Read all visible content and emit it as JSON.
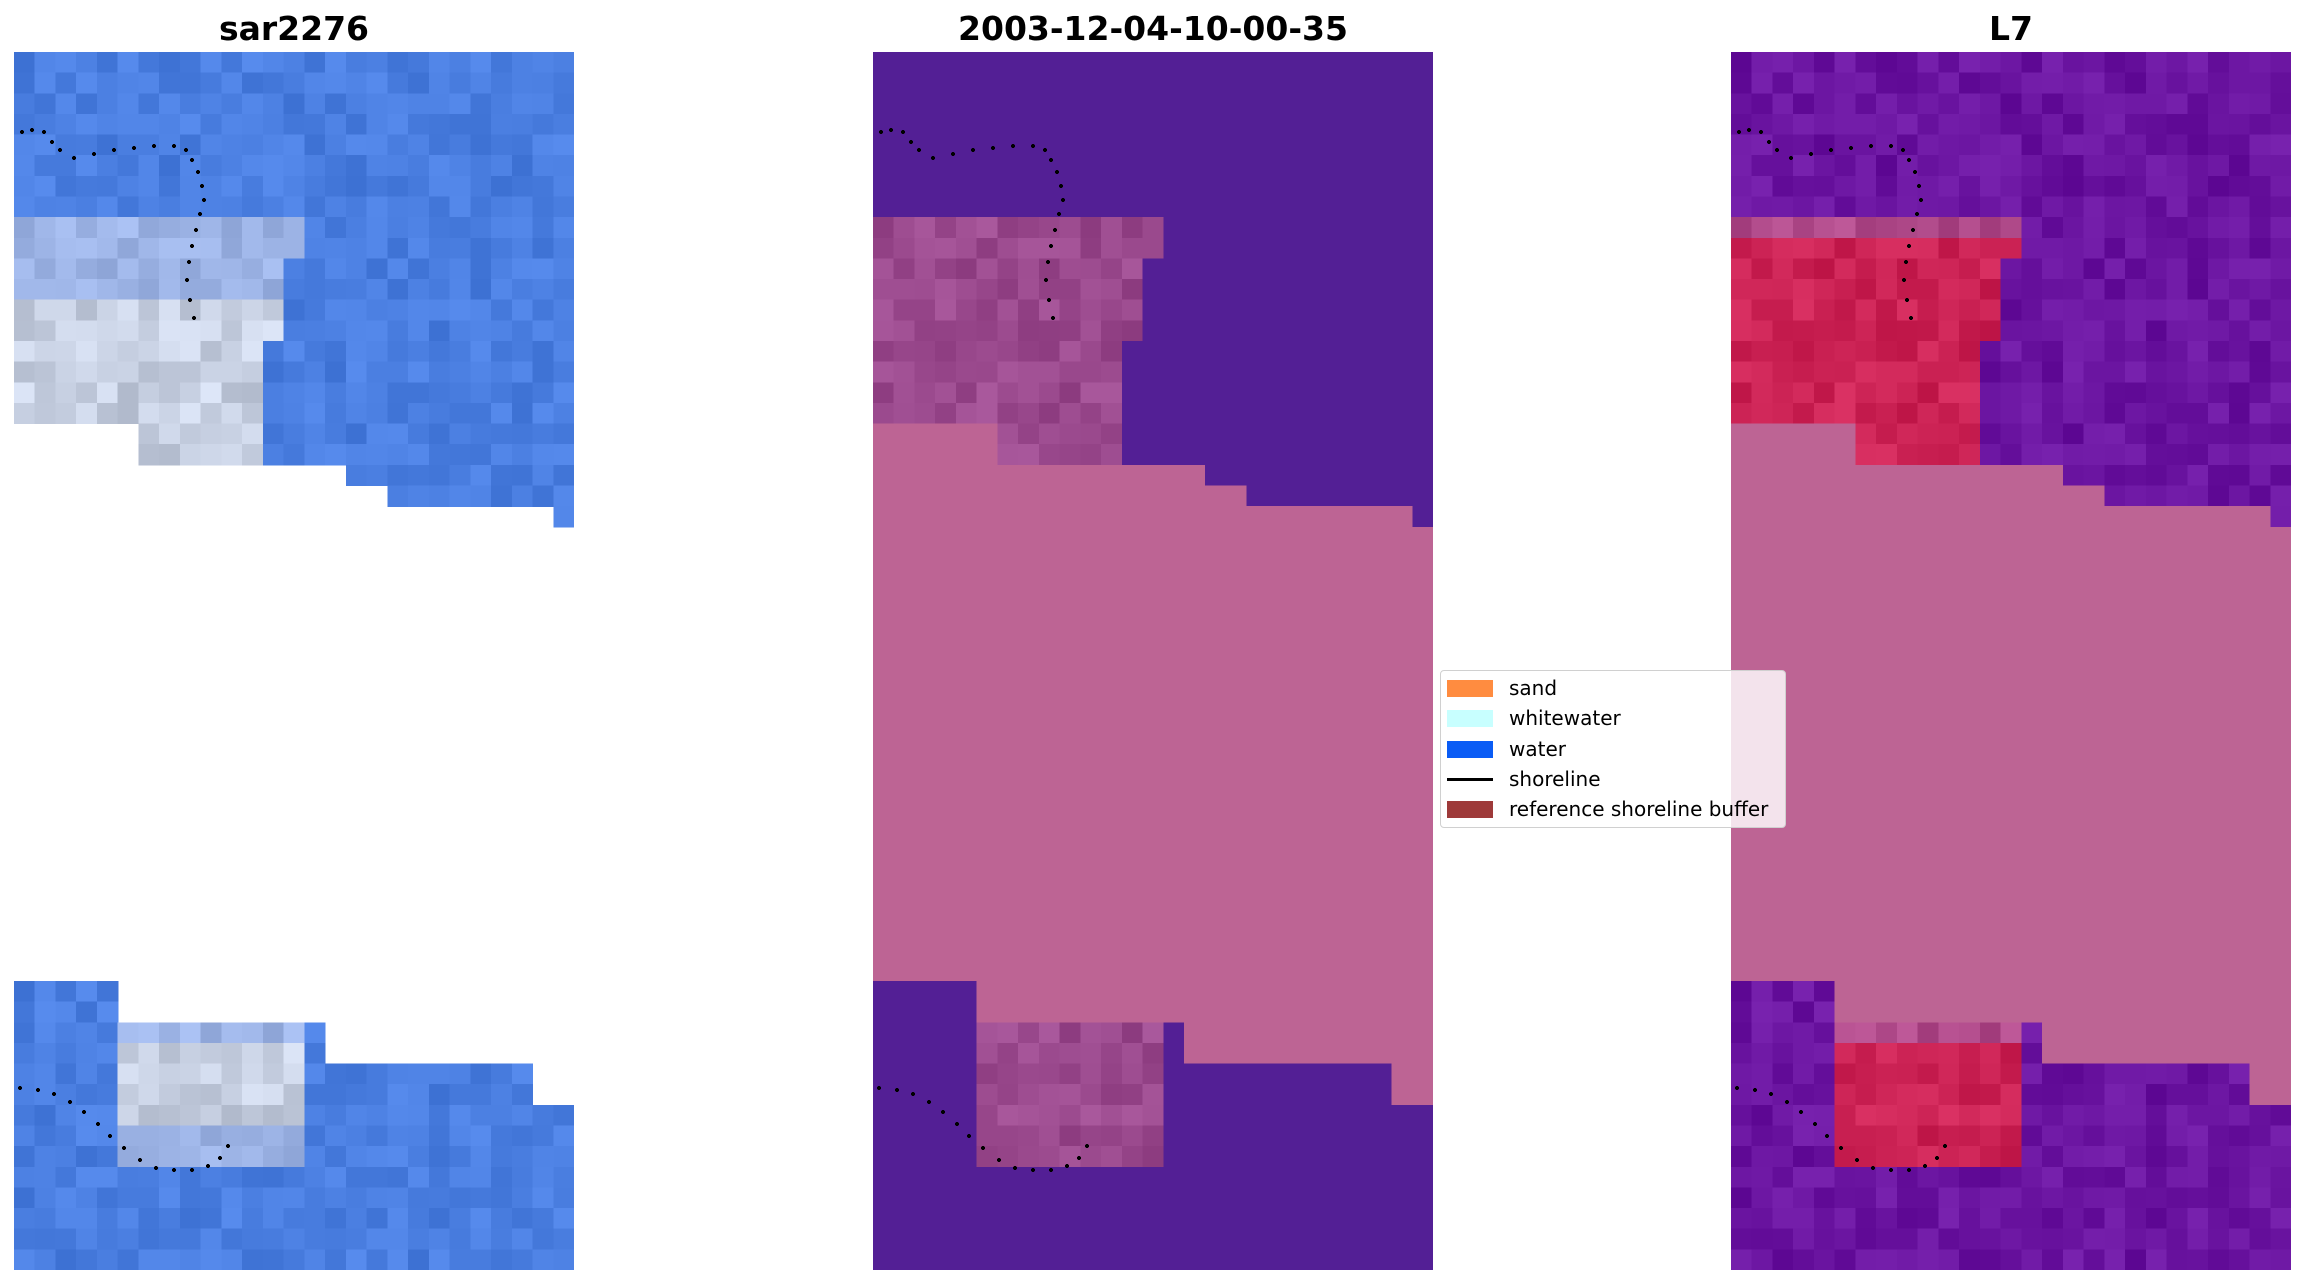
{
  "panels": [
    {
      "title": "sar2276"
    },
    {
      "title": "2003-12-04-10-00-35"
    },
    {
      "title": "L7"
    }
  ],
  "legend": {
    "items": [
      {
        "label": "sand",
        "color": "#ff8c40",
        "kind": "patch"
      },
      {
        "label": "whitewater",
        "color": "#c8ffff",
        "kind": "patch"
      },
      {
        "label": "water",
        "color": "#0a5cf5",
        "kind": "patch"
      },
      {
        "label": "shoreline",
        "color": "#000000",
        "kind": "line"
      },
      {
        "label": "reference shoreline buffer",
        "color": "#9e3a3a",
        "kind": "patch"
      }
    ]
  },
  "colors": {
    "rgb_water": "#4a7ee0",
    "rgb_whitewater": "#dde6f8",
    "classified_water": "#531f95",
    "classified_land": "#bd6494",
    "index_water": "#6a14a0",
    "index_land": "#bd6494",
    "index_high": "#cc2355",
    "no_data": "#bd6494"
  }
}
